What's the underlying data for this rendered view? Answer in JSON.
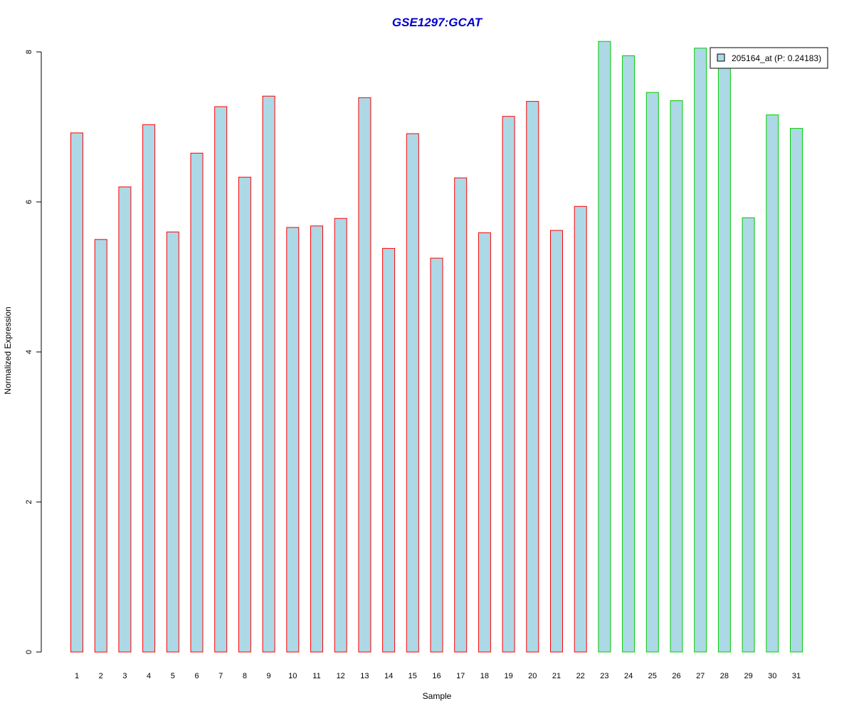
{
  "chart_data": {
    "type": "bar",
    "title": "GSE1297:GCAT",
    "xlabel": "Sample",
    "ylabel": "Normalized Expression",
    "categories": [
      "1",
      "2",
      "3",
      "4",
      "5",
      "6",
      "7",
      "8",
      "9",
      "10",
      "11",
      "12",
      "13",
      "14",
      "15",
      "16",
      "17",
      "18",
      "19",
      "20",
      "21",
      "22",
      "23",
      "24",
      "25",
      "26",
      "27",
      "28",
      "29",
      "30",
      "31"
    ],
    "values": [
      6.92,
      5.5,
      6.2,
      7.03,
      5.6,
      6.65,
      7.27,
      6.33,
      7.41,
      5.66,
      5.68,
      5.78,
      7.39,
      5.38,
      6.91,
      5.25,
      6.32,
      5.59,
      7.14,
      7.34,
      5.62,
      5.94,
      8.14,
      7.95,
      7.46,
      7.35,
      8.05,
      7.85,
      5.79,
      7.16,
      6.98
    ],
    "groups": [
      "red",
      "red",
      "red",
      "red",
      "red",
      "red",
      "red",
      "red",
      "red",
      "red",
      "red",
      "red",
      "red",
      "red",
      "red",
      "red",
      "red",
      "red",
      "red",
      "red",
      "red",
      "red",
      "green",
      "green",
      "green",
      "green",
      "green",
      "green",
      "green",
      "green",
      "green"
    ],
    "yticks": [
      0,
      2,
      4,
      6,
      8
    ],
    "ylim": [
      0,
      8.0
    ],
    "grid": false,
    "legend": {
      "position": "top-right",
      "entries": [
        "205164_at (P: 0.24183)"
      ]
    },
    "colors": {
      "title": "#0000cc",
      "bar_fill": "#add8e6",
      "group_red": "#ff0000",
      "group_green": "#00cc00",
      "axis": "#000000"
    }
  }
}
